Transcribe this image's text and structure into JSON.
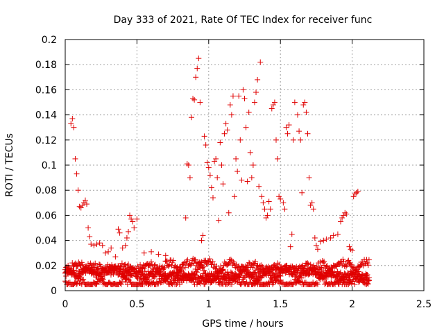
{
  "chart_data": {
    "type": "scatter",
    "title": "Day 333 of 2021, Rate Of TEC Index for receiver func",
    "xlabel": "GPS time / hours",
    "ylabel": "ROTI / TECUs",
    "xlim": [
      0,
      2.5
    ],
    "ylim": [
      0,
      0.2
    ],
    "xticks": [
      0,
      0.5,
      1,
      1.5,
      2,
      2.5
    ],
    "xtick_labels": [
      "0",
      "0.5",
      "1",
      "1.5",
      "2",
      "2.5"
    ],
    "yticks": [
      0,
      0.02,
      0.04,
      0.06,
      0.08,
      0.1,
      0.12,
      0.14,
      0.16,
      0.18,
      0.2
    ],
    "ytick_labels": [
      "0",
      "0.02",
      "0.04",
      "0.06",
      "0.08",
      "0.1",
      "0.12",
      "0.14",
      "0.16",
      "0.18",
      "0.2"
    ],
    "grid": true,
    "marker": "plus",
    "color": "#e00000",
    "series": [
      {
        "points": [
          [
            0.02,
            0.02
          ],
          [
            0.03,
            0.018
          ],
          [
            0.04,
            0.133
          ],
          [
            0.05,
            0.137
          ],
          [
            0.06,
            0.13
          ],
          [
            0.07,
            0.105
          ],
          [
            0.08,
            0.093
          ],
          [
            0.09,
            0.08
          ],
          [
            0.1,
            0.067
          ],
          [
            0.11,
            0.066
          ],
          [
            0.12,
            0.068
          ],
          [
            0.13,
            0.07
          ],
          [
            0.14,
            0.072
          ],
          [
            0.15,
            0.069
          ],
          [
            0.16,
            0.05
          ],
          [
            0.17,
            0.043
          ],
          [
            0.18,
            0.037
          ],
          [
            0.2,
            0.036
          ],
          [
            0.22,
            0.037
          ],
          [
            0.24,
            0.038
          ],
          [
            0.26,
            0.036
          ],
          [
            0.28,
            0.03
          ],
          [
            0.3,
            0.031
          ],
          [
            0.32,
            0.034
          ],
          [
            0.35,
            0.027
          ],
          [
            0.37,
            0.049
          ],
          [
            0.38,
            0.046
          ],
          [
            0.4,
            0.034
          ],
          [
            0.42,
            0.036
          ],
          [
            0.43,
            0.042
          ],
          [
            0.44,
            0.047
          ],
          [
            0.45,
            0.06
          ],
          [
            0.46,
            0.057
          ],
          [
            0.47,
            0.055
          ],
          [
            0.48,
            0.05
          ],
          [
            0.5,
            0.057
          ],
          [
            0.55,
            0.03
          ],
          [
            0.6,
            0.031
          ],
          [
            0.65,
            0.029
          ],
          [
            0.7,
            0.028
          ],
          [
            0.84,
            0.058
          ],
          [
            0.85,
            0.101
          ],
          [
            0.86,
            0.1
          ],
          [
            0.87,
            0.09
          ],
          [
            0.88,
            0.138
          ],
          [
            0.89,
            0.153
          ],
          [
            0.9,
            0.152
          ],
          [
            0.91,
            0.17
          ],
          [
            0.92,
            0.177
          ],
          [
            0.93,
            0.185
          ],
          [
            0.94,
            0.15
          ],
          [
            0.95,
            0.04
          ],
          [
            0.96,
            0.044
          ],
          [
            0.97,
            0.123
          ],
          [
            0.98,
            0.116
          ],
          [
            0.99,
            0.102
          ],
          [
            1.0,
            0.098
          ],
          [
            1.01,
            0.092
          ],
          [
            1.02,
            0.082
          ],
          [
            1.03,
            0.074
          ],
          [
            1.04,
            0.103
          ],
          [
            1.05,
            0.105
          ],
          [
            1.06,
            0.09
          ],
          [
            1.07,
            0.056
          ],
          [
            1.08,
            0.118
          ],
          [
            1.09,
            0.1
          ],
          [
            1.1,
            0.085
          ],
          [
            1.11,
            0.125
          ],
          [
            1.12,
            0.133
          ],
          [
            1.13,
            0.128
          ],
          [
            1.14,
            0.062
          ],
          [
            1.15,
            0.148
          ],
          [
            1.16,
            0.14
          ],
          [
            1.17,
            0.155
          ],
          [
            1.18,
            0.075
          ],
          [
            1.19,
            0.105
          ],
          [
            1.2,
            0.095
          ],
          [
            1.21,
            0.155
          ],
          [
            1.22,
            0.12
          ],
          [
            1.23,
            0.088
          ],
          [
            1.24,
            0.16
          ],
          [
            1.25,
            0.153
          ],
          [
            1.26,
            0.13
          ],
          [
            1.27,
            0.087
          ],
          [
            1.28,
            0.142
          ],
          [
            1.29,
            0.11
          ],
          [
            1.3,
            0.09
          ],
          [
            1.31,
            0.1
          ],
          [
            1.32,
            0.15
          ],
          [
            1.33,
            0.158
          ],
          [
            1.34,
            0.168
          ],
          [
            1.35,
            0.083
          ],
          [
            1.36,
            0.182
          ],
          [
            1.37,
            0.075
          ],
          [
            1.38,
            0.07
          ],
          [
            1.39,
            0.065
          ],
          [
            1.4,
            0.058
          ],
          [
            1.41,
            0.06
          ],
          [
            1.42,
            0.071
          ],
          [
            1.43,
            0.065
          ],
          [
            1.44,
            0.145
          ],
          [
            1.45,
            0.148
          ],
          [
            1.46,
            0.15
          ],
          [
            1.47,
            0.12
          ],
          [
            1.48,
            0.105
          ],
          [
            1.49,
            0.075
          ],
          [
            1.5,
            0.073
          ],
          [
            1.52,
            0.07
          ],
          [
            1.53,
            0.065
          ],
          [
            1.54,
            0.13
          ],
          [
            1.55,
            0.125
          ],
          [
            1.56,
            0.132
          ],
          [
            1.57,
            0.035
          ],
          [
            1.58,
            0.045
          ],
          [
            1.59,
            0.12
          ],
          [
            1.6,
            0.15
          ],
          [
            1.62,
            0.14
          ],
          [
            1.63,
            0.127
          ],
          [
            1.64,
            0.12
          ],
          [
            1.65,
            0.078
          ],
          [
            1.66,
            0.148
          ],
          [
            1.67,
            0.15
          ],
          [
            1.68,
            0.142
          ],
          [
            1.69,
            0.125
          ],
          [
            1.7,
            0.09
          ],
          [
            1.71,
            0.068
          ],
          [
            1.72,
            0.07
          ],
          [
            1.73,
            0.065
          ],
          [
            1.74,
            0.042
          ],
          [
            1.75,
            0.036
          ],
          [
            1.76,
            0.033
          ],
          [
            1.78,
            0.039
          ],
          [
            1.8,
            0.04
          ],
          [
            1.82,
            0.041
          ],
          [
            1.85,
            0.042
          ],
          [
            1.87,
            0.044
          ],
          [
            1.9,
            0.045
          ],
          [
            1.92,
            0.055
          ],
          [
            1.93,
            0.058
          ],
          [
            1.94,
            0.06
          ],
          [
            1.95,
            0.062
          ],
          [
            1.96,
            0.061
          ],
          [
            1.98,
            0.035
          ],
          [
            1.99,
            0.033
          ],
          [
            2.0,
            0.032
          ],
          [
            2.01,
            0.075
          ],
          [
            2.02,
            0.077
          ],
          [
            2.03,
            0.078
          ],
          [
            2.04,
            0.079
          ]
        ]
      }
    ],
    "baseline_band": {
      "x_start": 0.0,
      "x_end": 2.12,
      "y_low": 0.005,
      "y_high": 0.026
    }
  }
}
